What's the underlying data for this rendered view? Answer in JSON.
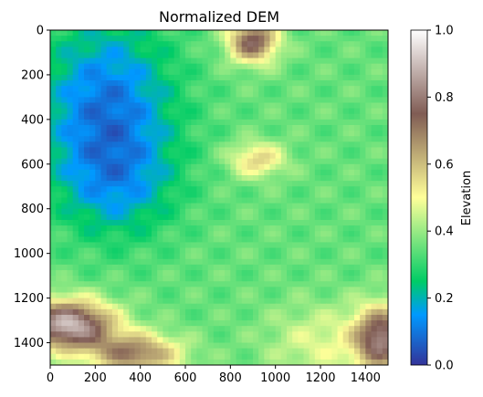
{
  "chart_data": {
    "type": "heatmap",
    "title": "Normalized DEM",
    "colormap": "terrain",
    "x_range": [
      0,
      1500
    ],
    "y_range": [
      1500,
      0
    ],
    "x_ticks": [
      "0",
      "200",
      "400",
      "600",
      "800",
      "1000",
      "1200",
      "1400"
    ],
    "y_ticks": [
      "0",
      "200",
      "400",
      "600",
      "800",
      "1000",
      "1200",
      "1400"
    ],
    "colorbar": {
      "label": "Elevation",
      "range": [
        0.0,
        1.0
      ],
      "ticks": [
        "0.0",
        "0.2",
        "0.4",
        "0.6",
        "0.8",
        "1.0"
      ]
    },
    "features": [
      {
        "region": "west lowland basin (blue)",
        "x": [
          0,
          700
        ],
        "y": [
          0,
          950
        ],
        "value": 0.12
      },
      {
        "region": "central plain (green-yellow)",
        "x": [
          600,
          1500
        ],
        "y": [
          200,
          1200
        ],
        "value": 0.38
      },
      {
        "region": "north ridge near top edge",
        "x": [
          750,
          1050
        ],
        "y": [
          0,
          300
        ],
        "value": 0.72
      },
      {
        "region": "central plateau",
        "x": [
          820,
          1050
        ],
        "y": [
          500,
          650
        ],
        "value": 0.6
      },
      {
        "region": "southwest mountains",
        "x": [
          0,
          600
        ],
        "y": [
          1050,
          1500
        ],
        "value": 0.9
      },
      {
        "region": "southeast mountains",
        "x": [
          1250,
          1500
        ],
        "y": [
          1150,
          1500
        ],
        "value": 0.75
      }
    ]
  }
}
